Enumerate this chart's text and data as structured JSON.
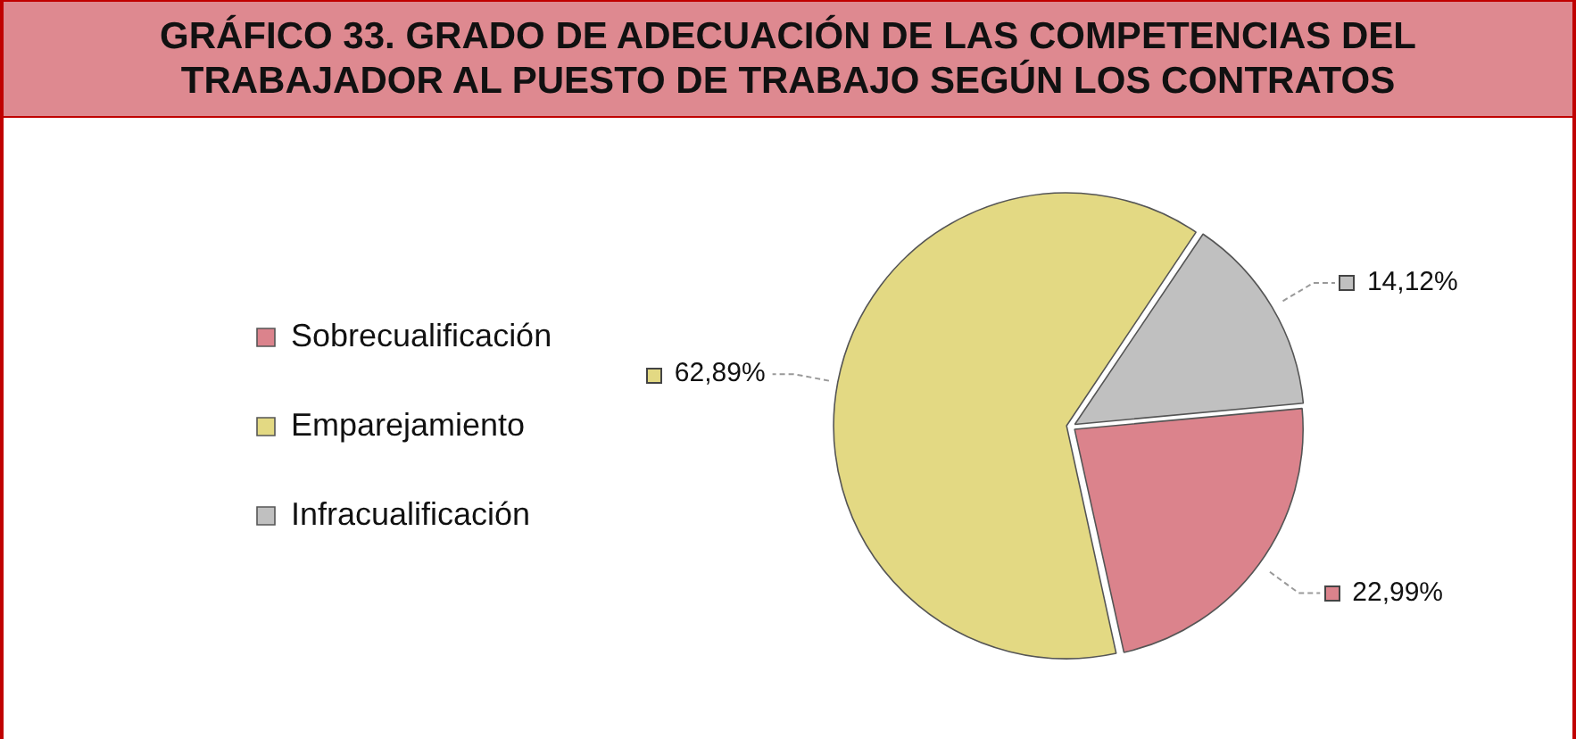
{
  "chart_data": {
    "type": "pie",
    "title": "GRÁFICO 33. GRADO DE ADECUACIÓN DE LAS COMPETENCIAS DEL TRABAJADOR AL PUESTO DE TRABAJO SEGÚN LOS CONTRATOS",
    "categories": [
      "Sobrecualificación",
      "Emparejamiento",
      "Infracualificación"
    ],
    "values": [
      22.99,
      62.89,
      14.12
    ],
    "colors": [
      "#db838c",
      "#e3d983",
      "#c0c0c0"
    ],
    "value_labels": [
      "22,99%",
      "62,89%",
      "14,12%"
    ],
    "legend": "left"
  }
}
